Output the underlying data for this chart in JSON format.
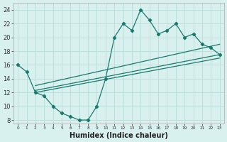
{
  "main_x": [
    0,
    1,
    2,
    3,
    4,
    5,
    6,
    7,
    8,
    9,
    10,
    11,
    12,
    13,
    14,
    15,
    16,
    17,
    18,
    19,
    20,
    21,
    22,
    23
  ],
  "main_y": [
    16,
    15,
    12,
    11.5,
    10,
    9,
    8.5,
    8,
    8,
    10,
    14,
    20,
    22,
    21,
    24,
    22.5,
    20.5,
    21,
    22,
    20,
    20.5,
    19,
    18.5,
    17.5
  ],
  "trend1_x": [
    2,
    23
  ],
  "trend1_y": [
    13.0,
    19.0
  ],
  "trend2_x": [
    2,
    23
  ],
  "trend2_y": [
    12.3,
    17.5
  ],
  "trend3_x": [
    2,
    23
  ],
  "trend3_y": [
    12.0,
    17.0
  ],
  "xlabel": "Humidex (Indice chaleur)",
  "xticks": [
    0,
    1,
    2,
    3,
    4,
    5,
    6,
    7,
    8,
    9,
    10,
    11,
    12,
    13,
    14,
    15,
    16,
    17,
    18,
    19,
    20,
    21,
    22,
    23
  ],
  "xtick_labels": [
    "0",
    "1",
    "2",
    "3",
    "4",
    "5",
    "6",
    "7",
    "8",
    "9",
    "10",
    "11",
    "12",
    "13",
    "14",
    "15",
    "16",
    "17",
    "18",
    "19",
    "20",
    "21",
    "22",
    "23"
  ],
  "yticks": [
    8,
    10,
    12,
    14,
    16,
    18,
    20,
    22,
    24
  ],
  "ylim": [
    7.5,
    25
  ],
  "xlim": [
    -0.5,
    23.5
  ],
  "line_color": "#1a7a6e",
  "bg_color": "#d8f0ee",
  "grid_color": "#b8ddd9"
}
